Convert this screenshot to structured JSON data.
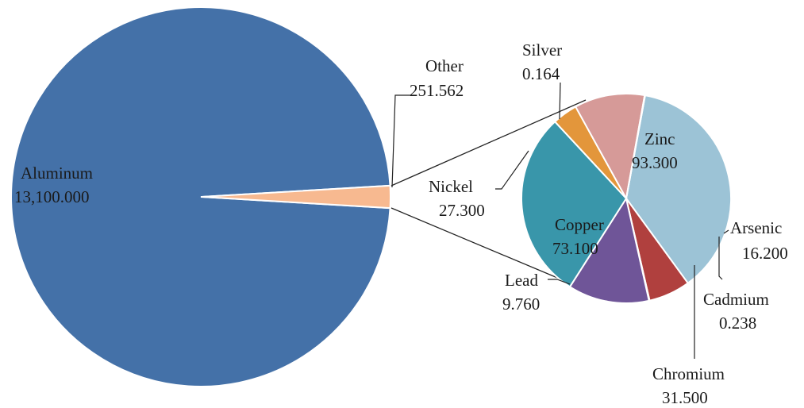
{
  "chart_data": {
    "type": "pie",
    "subtype": "pie-of-pie",
    "title": "",
    "main_pie": {
      "slices": [
        {
          "label": "Aluminum",
          "value_text": "13,100.000",
          "value": 13100.0,
          "color": "#4471a8"
        },
        {
          "label": "Other",
          "value_text": "251.562",
          "value": 251.562,
          "color": "#f7b990"
        }
      ]
    },
    "secondary_pie": {
      "slices": [
        {
          "label": "Zinc",
          "value_text": "93.300",
          "value": 93.3,
          "color": "#9cc3d6"
        },
        {
          "label": "Arsenic",
          "value_text": "16.200",
          "value": 16.2,
          "color": "#b0403e"
        },
        {
          "label": "Cadmium",
          "value_text": "0.238",
          "value": 0.238,
          "color": "#7a9a3f"
        },
        {
          "label": "Chromium",
          "value_text": "31.500",
          "value": 31.5,
          "color": "#6f5598"
        },
        {
          "label": "Copper",
          "value_text": "73.100",
          "value": 73.1,
          "color": "#3996aa"
        },
        {
          "label": "Lead",
          "value_text": "9.760",
          "value": 9.76,
          "color": "#e3963b"
        },
        {
          "label": "Nickel",
          "value_text": "27.300",
          "value": 27.3,
          "color": "#d69a98"
        },
        {
          "label": "Silver",
          "value_text": "0.164",
          "value": 0.164,
          "color": "#8fb8d8"
        }
      ]
    },
    "legend": "none"
  }
}
